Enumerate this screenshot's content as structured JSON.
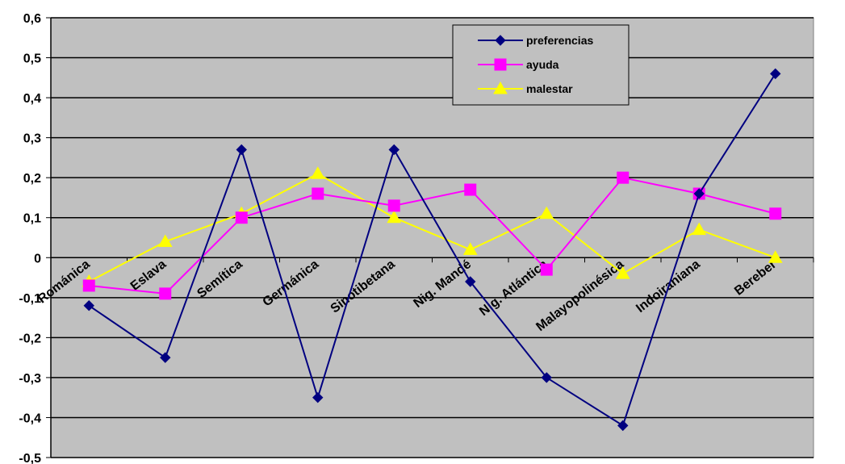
{
  "chart_data": {
    "type": "line",
    "categories": [
      "Románica",
      "Eslava",
      "Semítica",
      "Germánica",
      "Sinotibetana",
      "Nig. Mandé",
      "Nig. Atlántica",
      "Malayopolinésica",
      "Indoiraniana",
      "Bereber"
    ],
    "series": [
      {
        "name": "preferencias",
        "color": "#000080",
        "marker": "diamond",
        "values": [
          -0.12,
          -0.25,
          0.27,
          -0.35,
          0.27,
          -0.06,
          -0.3,
          -0.42,
          0.16,
          0.46
        ]
      },
      {
        "name": "ayuda",
        "color": "#FF00FF",
        "marker": "square",
        "values": [
          -0.07,
          -0.09,
          0.1,
          0.16,
          0.13,
          0.17,
          -0.03,
          0.2,
          0.16,
          0.11
        ]
      },
      {
        "name": "malestar",
        "color": "#FFFF00",
        "marker": "triangle",
        "values": [
          -0.06,
          0.04,
          0.11,
          0.21,
          0.1,
          0.02,
          0.11,
          -0.04,
          0.07,
          0.0
        ]
      }
    ],
    "yticks": [
      "0,6",
      "0,5",
      "0,4",
      "0,3",
      "0,2",
      "0,1",
      "0",
      "-0,1",
      "-0,2",
      "-0,3",
      "-0,4",
      "-0,5"
    ],
    "ylim": [
      -0.5,
      0.6
    ],
    "grid": true,
    "plot_background": "#C0C0C0",
    "legend_position": "top-right"
  }
}
